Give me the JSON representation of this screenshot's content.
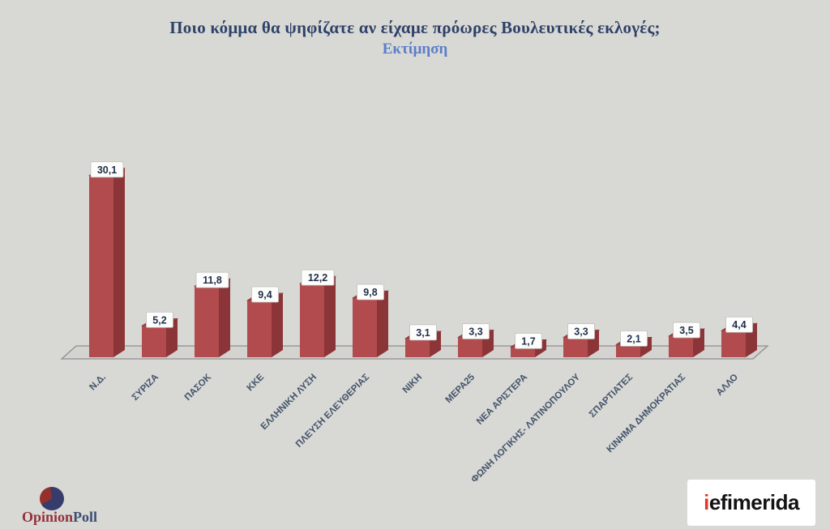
{
  "title": "Ποιο κόμμα θα ψηφίζατε αν είχαμε πρόωρες Βουλευτικές εκλογές;",
  "subtitle": "Εκτίμηση",
  "chart_data": {
    "type": "bar",
    "variant": "3d-column",
    "title": "Ποιο κόμμα θα ψηφίζατε αν είχαμε πρόωρες Βουλευτικές εκλογές; — Εκτίμηση",
    "categories": [
      "Ν.Δ.",
      "ΣΥΡΙΖΑ",
      "ΠΑΣΟΚ",
      "ΚΚΕ",
      "ΕΛΛΗΝΙΚΗ ΛΥΣΗ",
      "ΠΛΕΥΣΗ ΕΛΕΥΘΕΡΙΑΣ",
      "ΝΙΚΗ",
      "ΜΕΡΑ25",
      "ΝΕΑ ΑΡΙΣΤΕΡΑ",
      "ΦΩΝΗ ΛΟΓΙΚΗΣ- ΛΑΤΙΝΟΠΟΥΛΟΥ",
      "ΣΠΑΡΤΙΑΤΕΣ",
      "ΚΙΝΗΜΑ ΔΗΜΟΚΡΑΤΙΑΣ",
      "ΑΛΛΟ"
    ],
    "values": [
      30.1,
      5.2,
      11.8,
      9.4,
      12.2,
      9.8,
      3.1,
      3.3,
      1.7,
      3.3,
      2.1,
      3.5,
      4.4
    ],
    "value_labels": [
      "30,1",
      "5,2",
      "11,8",
      "9,4",
      "12,2",
      "9,8",
      "3,1",
      "3,3",
      "1,7",
      "3,3",
      "2,1",
      "3,5",
      "4,4"
    ],
    "xlabel": "",
    "ylabel": "",
    "ylim": [
      0,
      32
    ],
    "grid": false,
    "legend_position": "none",
    "bar_color": "#b24b4d",
    "bar_side_color": "#8c3538",
    "bar_top_color": "#9f3e41",
    "value_label_text_color": "#21304a",
    "category_label_color": "#44546a",
    "floor_line_color": "#8f8f8f"
  },
  "footer": {
    "opinionpoll": {
      "part1": "Opinion",
      "part2": "Poll",
      "part1_color": "#93313b",
      "part2_color": "#3e4e72"
    },
    "iefimerida": {
      "part1": "i",
      "part2": "efimerida",
      "part1_color": "#e0392e",
      "part2_color": "#121212"
    }
  }
}
